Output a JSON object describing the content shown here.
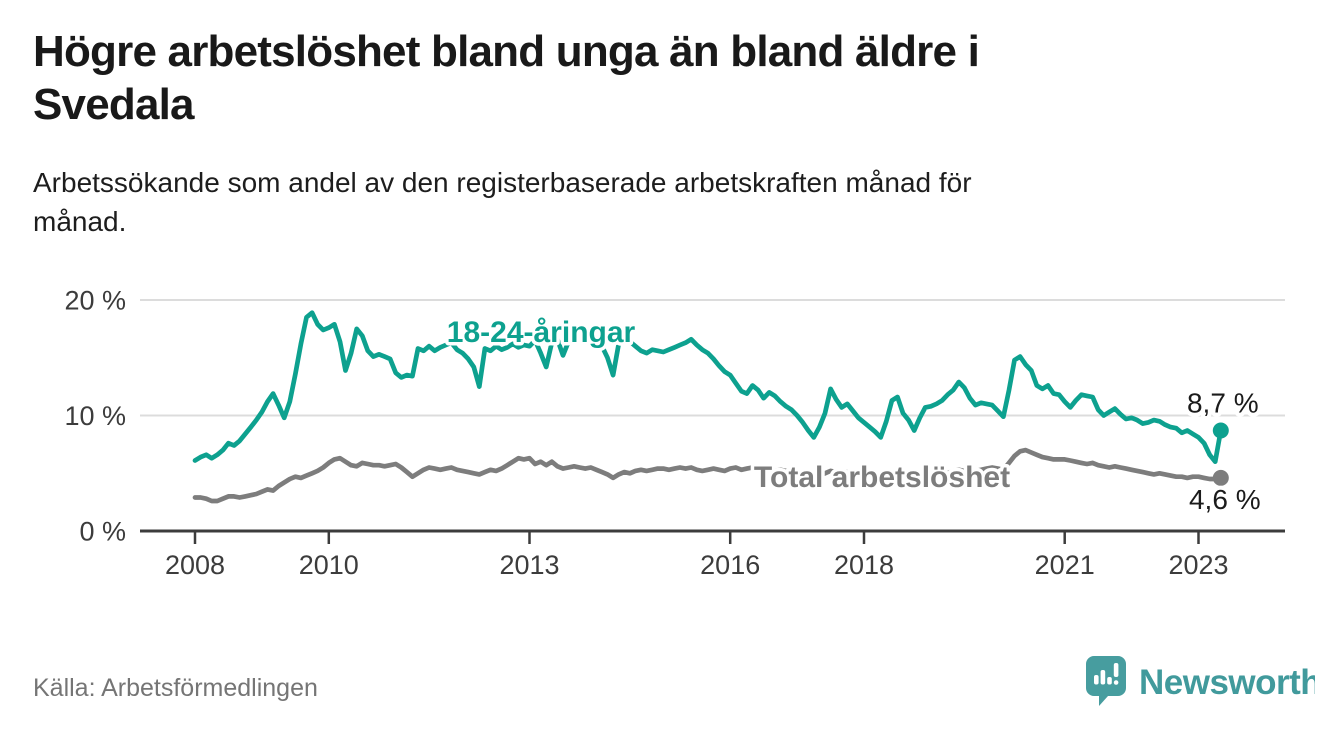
{
  "title": {
    "line1": "Högre arbetslöshet bland unga än bland äldre i",
    "line2": "Svedala"
  },
  "subtitle": {
    "line1": "Arbetssökande som andel av den registerbaserade arbetskraften månad för",
    "line2": "månad."
  },
  "source": "Källa: Arbetsförmedlingen",
  "logo": {
    "text": "Newsworthy",
    "icon": "bar-chart-speech-bubble-icon",
    "color": "#479d9f"
  },
  "colors": {
    "young_series": "#0da18f",
    "total_series": "#7d7d7d",
    "grid": "#dcdcdc",
    "axis": "#3c3c3c",
    "value_label": "#1b1b1b",
    "background": "#ffffff"
  },
  "chart_data": {
    "type": "line",
    "title": "Högre arbetslöshet bland unga än bland äldre i Svedala",
    "subtitle": "Arbetssökande som andel av den registerbaserade arbetskraften månad för månad.",
    "x_unit": "month",
    "x_start_year": 2008,
    "x_tick_labels": [
      "2008",
      "2010",
      "2013",
      "2016",
      "2018",
      "2021",
      "2023"
    ],
    "x_tick_years": [
      2008,
      2010,
      2013,
      2016,
      2018,
      2021,
      2023
    ],
    "y_tick_labels": [
      "0 %",
      "10 %",
      "20 %"
    ],
    "y_tick_values": [
      0,
      10,
      20
    ],
    "ylim": [
      0,
      21
    ],
    "grid": "horizontal",
    "legend_position": "inline-labels",
    "series": [
      {
        "name": "18-24-åringar",
        "color": "#0da18f",
        "end_label": "8,7 %",
        "end_value": 8.7,
        "values": [
          6.1,
          6.4,
          6.6,
          6.3,
          6.6,
          7.0,
          7.6,
          7.4,
          7.8,
          8.4,
          9.0,
          9.6,
          10.3,
          11.2,
          11.9,
          10.9,
          9.8,
          11.2,
          13.6,
          16.2,
          18.5,
          18.9,
          17.9,
          17.4,
          17.6,
          17.9,
          16.4,
          13.9,
          15.4,
          17.5,
          16.9,
          15.6,
          15.1,
          15.3,
          15.1,
          14.9,
          13.7,
          13.3,
          13.5,
          13.4,
          15.8,
          15.6,
          16.0,
          15.6,
          15.9,
          16.1,
          16.3,
          15.7,
          15.4,
          14.9,
          14.2,
          12.5,
          15.8,
          15.6,
          16.0,
          15.7,
          15.9,
          16.2,
          15.9,
          16.1,
          16.0,
          16.5,
          15.4,
          14.2,
          16.3,
          16.6,
          15.2,
          16.4,
          16.6,
          16.5,
          16.3,
          16.4,
          16.2,
          16.0,
          15.0,
          13.5,
          16.2,
          16.6,
          16.4,
          16.0,
          15.6,
          15.4,
          15.7,
          15.6,
          15.5,
          15.7,
          15.9,
          16.1,
          16.3,
          16.6,
          16.1,
          15.7,
          15.4,
          14.9,
          14.3,
          13.8,
          13.5,
          12.8,
          12.1,
          11.9,
          12.6,
          12.2,
          11.5,
          12.0,
          11.7,
          11.2,
          10.8,
          10.5,
          10.0,
          9.4,
          8.7,
          8.1,
          9.0,
          10.2,
          12.3,
          11.4,
          10.7,
          11.0,
          10.4,
          9.8,
          9.4,
          9.0,
          8.6,
          8.1,
          9.5,
          11.3,
          11.6,
          10.2,
          9.6,
          8.7,
          9.8,
          10.7,
          10.8,
          11.0,
          11.3,
          11.8,
          12.2,
          12.9,
          12.4,
          11.5,
          10.9,
          11.1,
          11.0,
          10.9,
          10.4,
          9.9,
          12.2,
          14.8,
          15.1,
          14.4,
          13.9,
          12.6,
          12.3,
          12.6,
          11.9,
          11.8,
          11.2,
          10.7,
          11.3,
          11.8,
          11.7,
          11.6,
          10.5,
          10.0,
          10.3,
          10.6,
          10.1,
          9.7,
          9.8,
          9.6,
          9.3,
          9.4,
          9.6,
          9.5,
          9.2,
          9.0,
          8.9,
          8.5,
          8.7,
          8.4,
          8.1,
          7.6,
          6.6,
          6.0,
          8.7
        ]
      },
      {
        "name": "Total arbetslöshet",
        "color": "#7d7d7d",
        "end_label": "4,6 %",
        "end_value": 4.6,
        "values": [
          2.9,
          2.9,
          2.8,
          2.6,
          2.6,
          2.8,
          3.0,
          3.0,
          2.9,
          3.0,
          3.1,
          3.2,
          3.4,
          3.6,
          3.5,
          3.9,
          4.2,
          4.5,
          4.7,
          4.6,
          4.8,
          5.0,
          5.2,
          5.5,
          5.9,
          6.2,
          6.3,
          6.0,
          5.7,
          5.6,
          5.9,
          5.8,
          5.7,
          5.7,
          5.6,
          5.7,
          5.8,
          5.5,
          5.1,
          4.7,
          5.0,
          5.3,
          5.5,
          5.4,
          5.3,
          5.4,
          5.5,
          5.3,
          5.2,
          5.1,
          5.0,
          4.9,
          5.1,
          5.3,
          5.2,
          5.4,
          5.7,
          6.0,
          6.3,
          6.2,
          6.3,
          5.8,
          6.0,
          5.7,
          6.0,
          5.6,
          5.4,
          5.5,
          5.6,
          5.5,
          5.4,
          5.5,
          5.3,
          5.1,
          4.9,
          4.6,
          4.9,
          5.1,
          5.0,
          5.2,
          5.3,
          5.2,
          5.3,
          5.4,
          5.4,
          5.3,
          5.4,
          5.5,
          5.4,
          5.5,
          5.3,
          5.2,
          5.3,
          5.4,
          5.3,
          5.2,
          5.4,
          5.5,
          5.3,
          5.4,
          5.5,
          5.6,
          5.4,
          5.3,
          5.2,
          5.3,
          5.2,
          5.1,
          5.0,
          4.9,
          4.8,
          4.7,
          4.8,
          5.0,
          5.2,
          5.1,
          5.0,
          5.1,
          5.0,
          4.9,
          4.8,
          4.7,
          4.6,
          4.5,
          4.7,
          4.9,
          5.0,
          4.8,
          4.6,
          4.5,
          4.7,
          4.9,
          4.9,
          5.0,
          5.1,
          5.0,
          5.2,
          5.3,
          5.2,
          5.1,
          5.2,
          5.3,
          5.4,
          5.5,
          5.4,
          5.3,
          5.9,
          6.5,
          6.9,
          7.0,
          6.8,
          6.6,
          6.4,
          6.3,
          6.2,
          6.2,
          6.2,
          6.1,
          6.0,
          5.9,
          5.8,
          5.9,
          5.7,
          5.6,
          5.5,
          5.6,
          5.5,
          5.4,
          5.3,
          5.2,
          5.1,
          5.0,
          4.9,
          5.0,
          4.9,
          4.8,
          4.7,
          4.7,
          4.6,
          4.7,
          4.7,
          4.6,
          4.5,
          4.5,
          4.6
        ]
      }
    ]
  }
}
